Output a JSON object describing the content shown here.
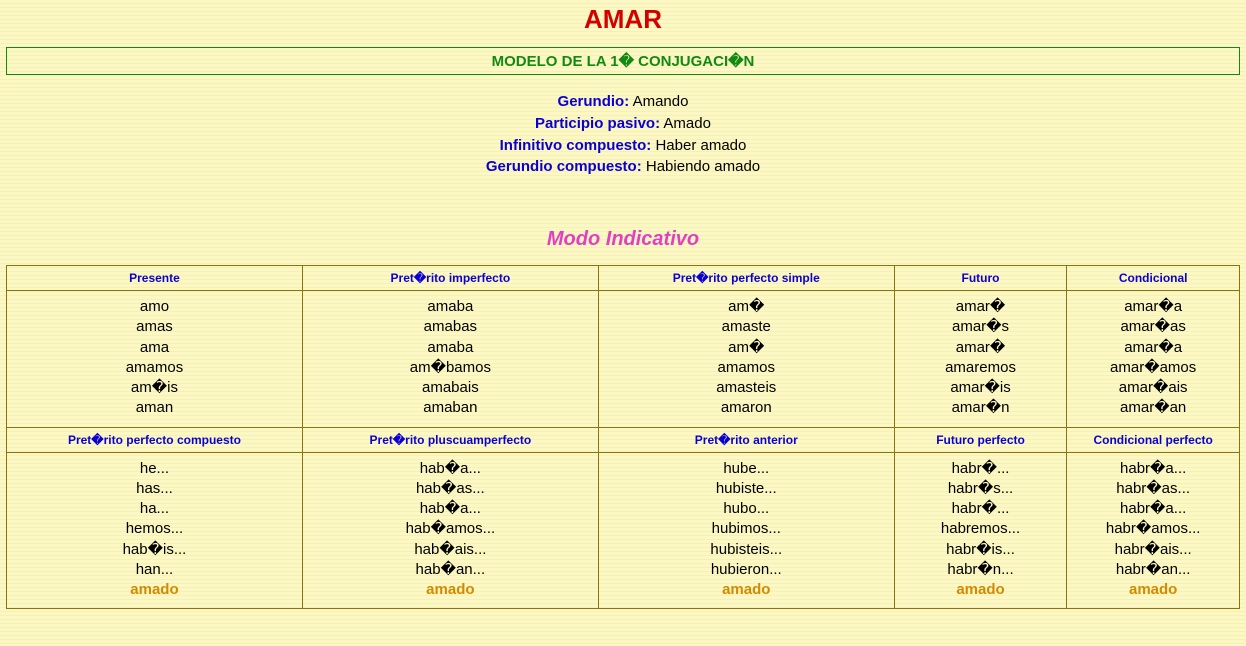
{
  "colors": {
    "title": "#d40000",
    "subtitle_text": "#128a12",
    "subtitle_border": "#128a12",
    "label": "#0b00d4",
    "value": "#000000",
    "mood_heading": "#e23fc2",
    "table_header": "#0b00d4",
    "table_cell": "#000000",
    "participle": "#d48a00",
    "table_border": "#8a7410",
    "background": "#fbf8c5"
  },
  "typography": {
    "title_fontsize": 26,
    "subtitle_fontsize": 15,
    "form_fontsize": 15,
    "mood_fontsize": 20,
    "th_fontsize": 12,
    "td_fontsize": 15,
    "font_family": "Arial"
  },
  "layout": {
    "column_count": 5,
    "column_widths_pct": [
      24,
      24,
      24,
      14,
      14
    ]
  },
  "title": "AMAR",
  "subtitle": "MODELO DE LA 1� CONJUGACI�N",
  "nonfinite_forms": [
    {
      "label": "Gerundio:",
      "value": "Amando"
    },
    {
      "label": "Participio pasivo:",
      "value": "Amado"
    },
    {
      "label": "Infinitivo compuesto:",
      "value": "Haber amado"
    },
    {
      "label": "Gerundio compuesto:",
      "value": "Habiendo amado"
    }
  ],
  "mood_heading": "Modo Indicativo",
  "simple_tenses": {
    "headers": [
      "Presente",
      "Pret�rito imperfecto",
      "Pret�rito perfecto simple",
      "Futuro",
      "Condicional"
    ],
    "columns": [
      [
        "amo",
        "amas",
        "ama",
        "amamos",
        "am�is",
        "aman"
      ],
      [
        "amaba",
        "amabas",
        "amaba",
        "am�bamos",
        "amabais",
        "amaban"
      ],
      [
        "am�",
        "amaste",
        "am�",
        "amamos",
        "amasteis",
        "amaron"
      ],
      [
        "amar�",
        "amar�s",
        "amar�",
        "amaremos",
        "amar�is",
        "amar�n"
      ],
      [
        "amar�a",
        "amar�as",
        "amar�a",
        "amar�amos",
        "amar�ais",
        "amar�an"
      ]
    ]
  },
  "compound_tenses": {
    "headers": [
      "Pret�rito perfecto compuesto",
      "Pret�rito pluscuamperfecto",
      "Pret�rito anterior",
      "Futuro perfecto",
      "Condicional perfecto"
    ],
    "columns": [
      {
        "aux": [
          "he...",
          "has...",
          "ha...",
          "hemos...",
          "hab�is...",
          "han..."
        ],
        "participle": "amado"
      },
      {
        "aux": [
          "hab�a...",
          "hab�as...",
          "hab�a...",
          "hab�amos...",
          "hab�ais...",
          "hab�an..."
        ],
        "participle": "amado"
      },
      {
        "aux": [
          "hube...",
          "hubiste...",
          "hubo...",
          "hubimos...",
          "hubisteis...",
          "hubieron..."
        ],
        "participle": "amado"
      },
      {
        "aux": [
          "habr�...",
          "habr�s...",
          "habr�...",
          "habremos...",
          "habr�is...",
          "habr�n..."
        ],
        "participle": "amado"
      },
      {
        "aux": [
          "habr�a...",
          "habr�as...",
          "habr�a...",
          "habr�amos...",
          "habr�ais...",
          "habr�an..."
        ],
        "participle": "amado"
      }
    ]
  }
}
